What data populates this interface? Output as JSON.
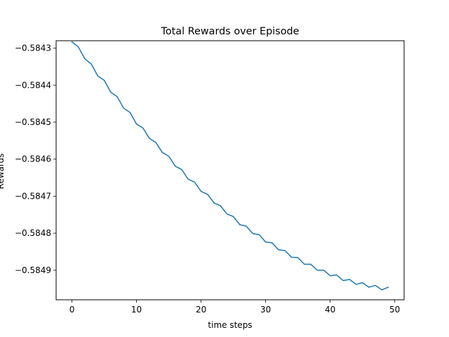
{
  "chart_data": {
    "type": "line",
    "title": "Total Rewards over Episode",
    "xlabel": "time steps",
    "ylabel": "Rewards",
    "xlim": [
      -2.45,
      51.45
    ],
    "ylim": [
      -0.58498,
      -0.58428
    ],
    "grid": false,
    "x_ticks": [
      0,
      10,
      20,
      30,
      40,
      50
    ],
    "x_tick_labels": [
      "0",
      "10",
      "20",
      "30",
      "40",
      "50"
    ],
    "y_ticks": [
      -0.5843,
      -0.5844,
      -0.5845,
      -0.5846,
      -0.5847,
      -0.5848,
      -0.5849
    ],
    "y_tick_labels": [
      "−0.5843",
      "−0.5844",
      "−0.5845",
      "−0.5846",
      "−0.5847",
      "−0.5848",
      "−0.5849"
    ],
    "series": [
      {
        "color": "#1f77b4",
        "x": [
          0,
          1,
          2,
          3,
          4,
          5,
          6,
          7,
          8,
          9,
          10,
          11,
          12,
          13,
          14,
          15,
          16,
          17,
          18,
          19,
          20,
          21,
          22,
          23,
          24,
          25,
          26,
          27,
          28,
          29,
          30,
          31,
          32,
          33,
          34,
          35,
          36,
          37,
          38,
          39,
          40,
          41,
          42,
          43,
          44,
          45,
          46,
          47,
          48,
          49
        ],
        "y": [
          -0.584283,
          -0.584297,
          -0.584329,
          -0.584343,
          -0.584375,
          -0.584387,
          -0.584419,
          -0.584431,
          -0.584462,
          -0.584474,
          -0.584505,
          -0.584516,
          -0.584544,
          -0.584555,
          -0.584582,
          -0.584592,
          -0.584619,
          -0.584628,
          -0.584654,
          -0.584662,
          -0.584687,
          -0.584695,
          -0.584718,
          -0.584726,
          -0.584748,
          -0.584755,
          -0.584777,
          -0.584781,
          -0.584801,
          -0.584804,
          -0.584824,
          -0.584826,
          -0.584845,
          -0.584847,
          -0.584865,
          -0.584866,
          -0.584884,
          -0.584884,
          -0.5849,
          -0.5849,
          -0.584915,
          -0.584913,
          -0.584928,
          -0.584925,
          -0.584938,
          -0.584934,
          -0.584946,
          -0.584941,
          -0.584953,
          -0.584946
        ]
      }
    ]
  }
}
